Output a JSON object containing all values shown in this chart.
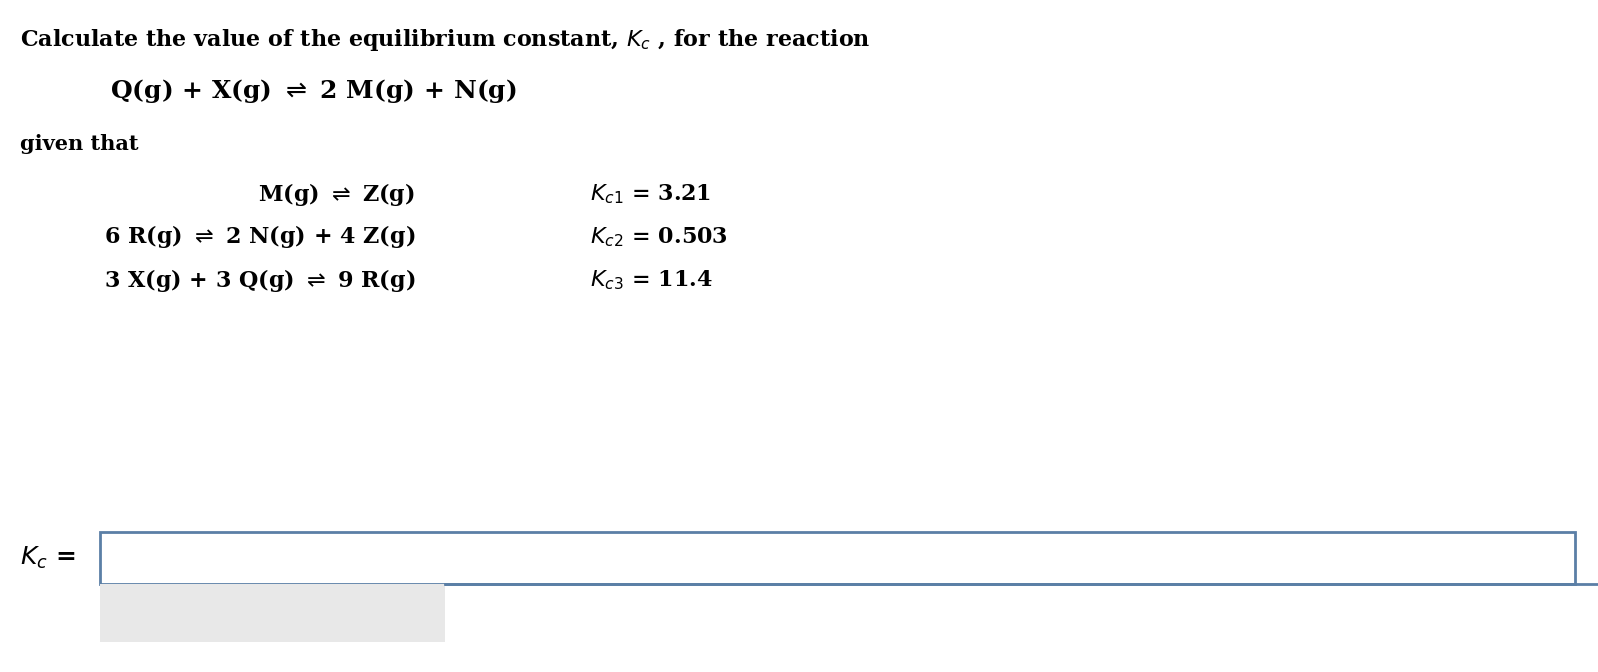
{
  "background_color": "#ffffff",
  "text_color": "#000000",
  "box_edge_color": "#5b7fa6",
  "box_fill_color": "#ffffff",
  "gray_fill_color": "#e8e8e8",
  "font_size_title": 16,
  "font_size_main": 18,
  "font_size_given": 15,
  "font_size_sub": 16,
  "font_size_kc": 18
}
